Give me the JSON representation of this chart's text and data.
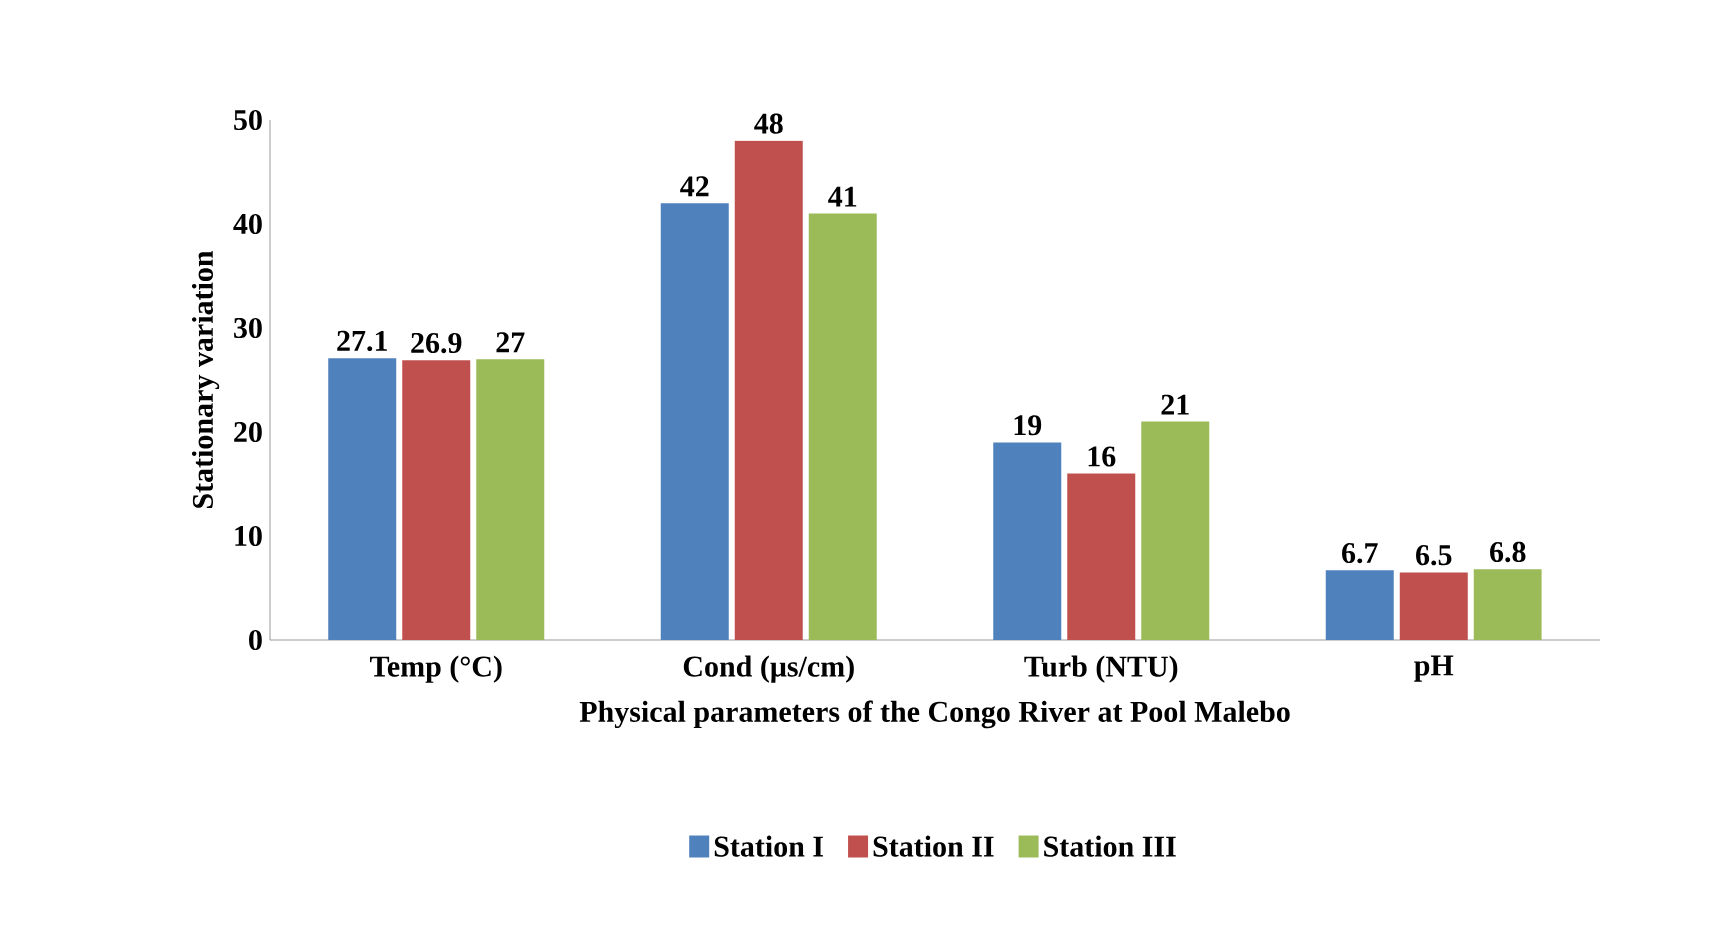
{
  "chart_data": {
    "type": "bar",
    "xlabel": "Physical parameters of the Congo River at Pool Malebo",
    "ylabel": "Stationary variation",
    "categories": [
      "Temp (°C)",
      "Cond (μs/cm)",
      "Turb (NTU)",
      "pH"
    ],
    "series": [
      {
        "name": "Station I",
        "color": "#4f81bd",
        "values": [
          27.1,
          42,
          19,
          6.7
        ]
      },
      {
        "name": "Station II",
        "color": "#c0504d",
        "values": [
          26.9,
          48,
          16,
          6.5
        ]
      },
      {
        "name": "Station III",
        "color": "#9bbb59",
        "values": [
          27,
          41,
          21,
          6.8
        ]
      }
    ],
    "ylim": [
      0,
      50
    ],
    "yticks": [
      0,
      10,
      20,
      30,
      40,
      50
    ],
    "data_labels": true,
    "legend": "bottom",
    "grid": false
  }
}
